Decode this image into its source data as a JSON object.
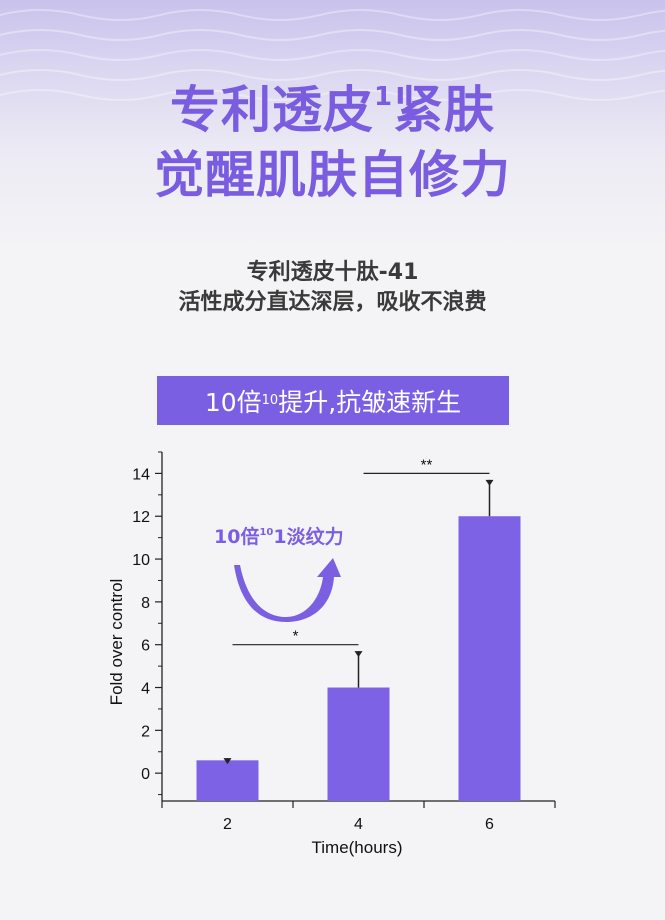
{
  "hero": {
    "line1_main": "专利透皮",
    "line1_sup": "1",
    "line1_tail": "紧肤",
    "line2": "觉醒肌肤自修力"
  },
  "subtitle": {
    "line1": "专利透皮十肽-41",
    "line2": "活性成分直达深层，吸收不浪费"
  },
  "banner": {
    "pre": "10倍",
    "sup": "10",
    "post": "提升,抗皱速新生"
  },
  "callout": {
    "pre": "10倍",
    "sup": "10",
    "post": "1淡纹力"
  },
  "colors": {
    "accent": "#7b5fe3",
    "bar": "#7d62e6",
    "headline": "#7a5ce0",
    "text": "#3a3a3a"
  },
  "chart_data": {
    "type": "bar",
    "categories": [
      "2",
      "4",
      "6"
    ],
    "values": [
      0.6,
      4.0,
      12.0
    ],
    "errors": [
      0.1,
      1.7,
      1.7
    ],
    "xlabel": "Time(hours)",
    "ylabel": "Fold over control",
    "ylim": [
      -1.3,
      15
    ],
    "yticks": [
      0,
      2,
      4,
      6,
      8,
      10,
      12,
      14
    ],
    "grid": false,
    "significance": [
      {
        "from": "2",
        "to": "4",
        "label": "*",
        "y": 6.0
      },
      {
        "from": "4",
        "to": "6",
        "label": "**",
        "y": 14.0
      }
    ]
  }
}
